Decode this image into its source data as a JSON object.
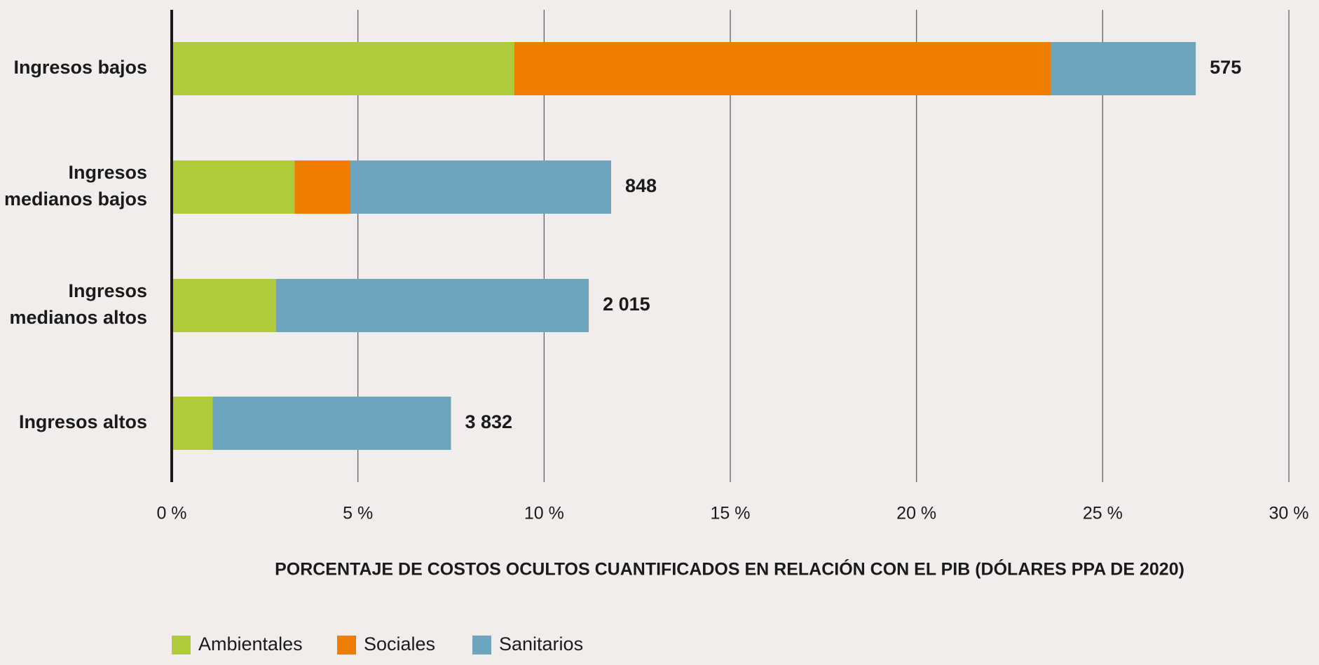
{
  "chart_data": {
    "type": "stacked-hbar",
    "x_label": "PORCENTAJE DE COSTOS OCULTOS CUANTIFICADOS EN RELACIÓN CON EL PIB (DÓLARES PPA DE 2020)",
    "categories": [
      "Ingresos bajos",
      "Ingresos medianos bajos",
      "Ingresos medianos altos",
      "Ingresos altos"
    ],
    "series": [
      {
        "name": "Ambientales",
        "color": "#afca3a",
        "values": [
          9.2,
          3.3,
          2.8,
          1.1
        ]
      },
      {
        "name": "Sociales",
        "color": "#ef7d00",
        "values": [
          14.4,
          1.5,
          0,
          0
        ]
      },
      {
        "name": "Sanitarios",
        "color": "#6fa5bc",
        "values": [
          3.9,
          7.0,
          8.4,
          6.4
        ]
      }
    ],
    "end_labels": [
      "575",
      "848",
      "2 015",
      "3 832"
    ],
    "xlim": [
      0,
      30
    ],
    "xticks": [
      {
        "value": 0,
        "label": "0 %"
      },
      {
        "value": 5,
        "label": "5 %"
      },
      {
        "value": 10,
        "label": "10 %"
      },
      {
        "value": 15,
        "label": "15 %"
      },
      {
        "value": 20,
        "label": "20 %"
      },
      {
        "value": 25,
        "label": "25 %"
      },
      {
        "value": 30,
        "label": "30 %"
      }
    ],
    "grid": true,
    "legend": "bottom-left"
  }
}
